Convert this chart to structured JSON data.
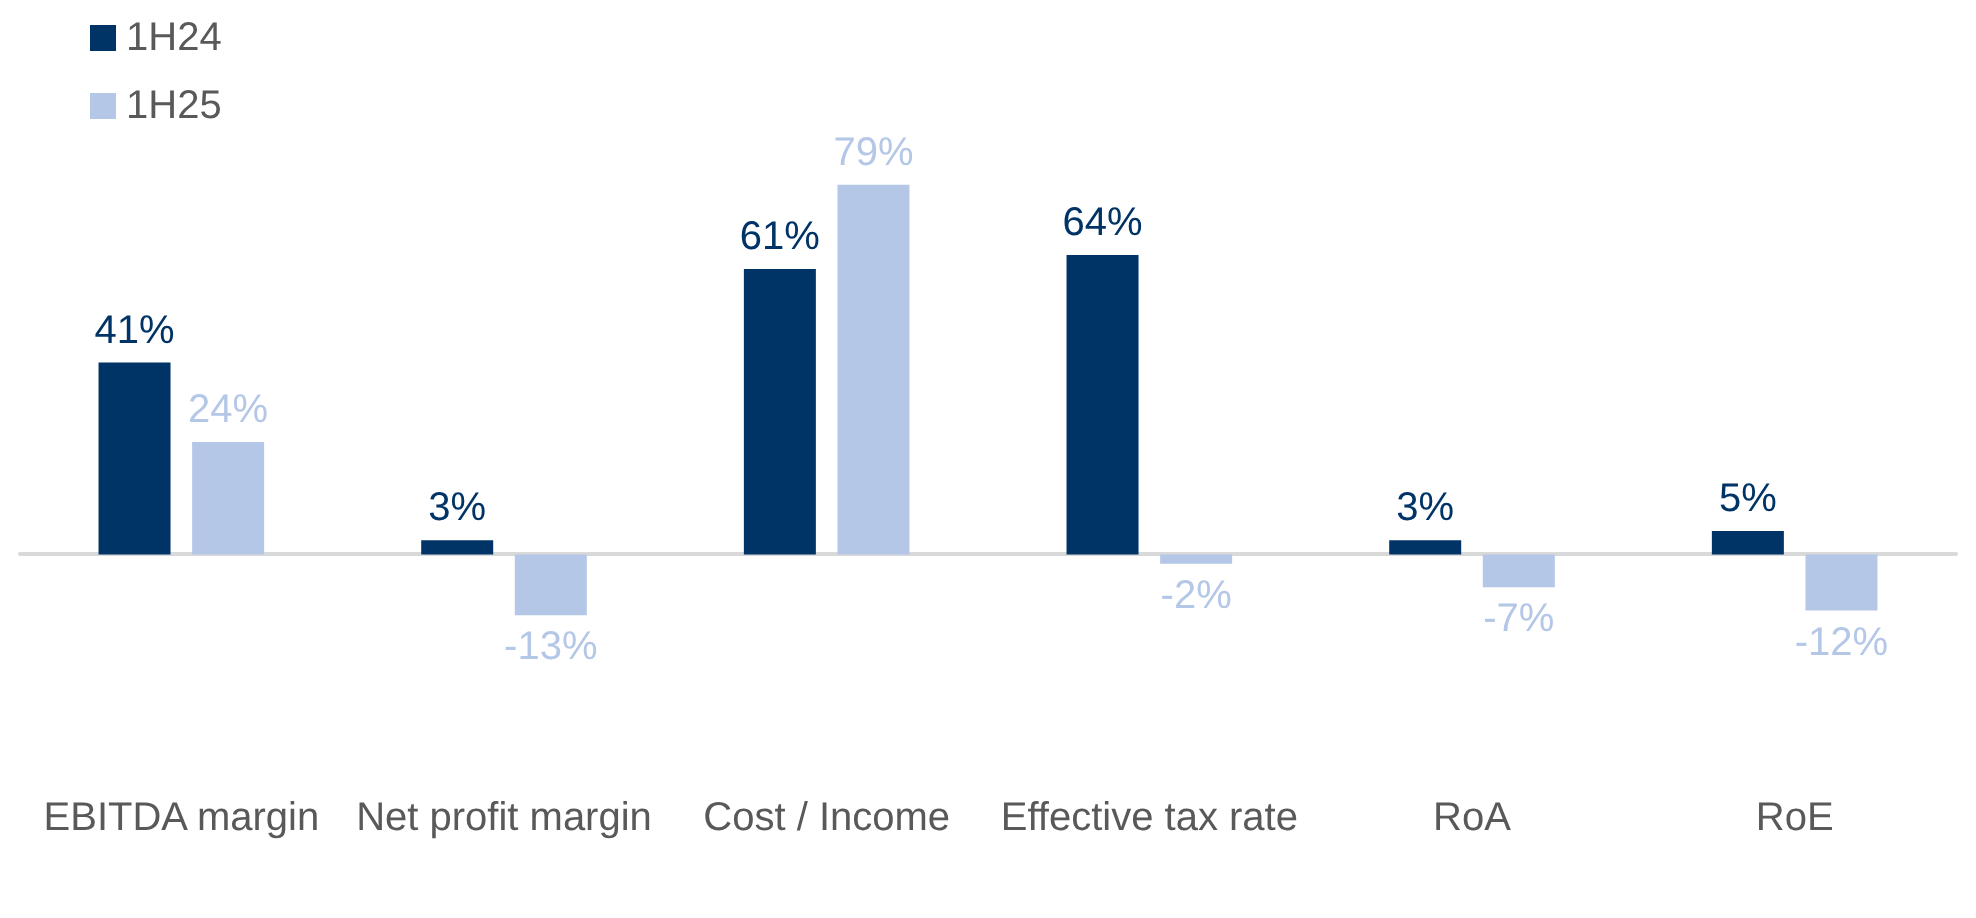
{
  "chart_data": {
    "type": "bar",
    "categories": [
      "EBITDA margin",
      "Net profit margin",
      "Cost / Income",
      "Effective tax rate",
      "RoA",
      "RoE"
    ],
    "series": [
      {
        "name": "1H24",
        "color": "#003366",
        "values": [
          41,
          3,
          61,
          64,
          3,
          5
        ],
        "value_labels": [
          "41%",
          "3%",
          "61%",
          "64%",
          "3%",
          "5%"
        ]
      },
      {
        "name": "1H25",
        "color": "#b4c7e7",
        "values": [
          24,
          -13,
          79,
          -2,
          -7,
          -12
        ],
        "value_labels": [
          "24%",
          "-13%",
          "79%",
          "-2%",
          "-7%",
          "-12%"
        ]
      }
    ],
    "legend": "top left",
    "grid": false,
    "tick_labels": "x"
  }
}
